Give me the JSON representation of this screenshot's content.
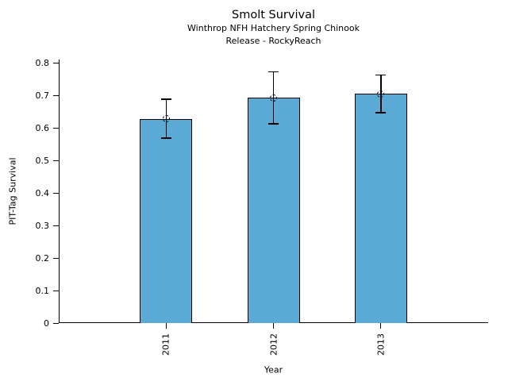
{
  "chart_data": {
    "type": "bar",
    "title": "Smolt Survival",
    "subtitle1": "Winthrop NFH Hatchery Spring Chinook",
    "subtitle2": "Release - RockyReach",
    "xlabel": "Year",
    "ylabel": "PIT-Tag Survival",
    "categories": [
      "2011",
      "2012",
      "2013"
    ],
    "values": [
      0.628,
      0.692,
      0.705
    ],
    "error_low": [
      0.568,
      0.612,
      0.646
    ],
    "error_high": [
      0.688,
      0.772,
      0.762
    ],
    "yticks": [
      0,
      0.1,
      0.2,
      0.3,
      0.4,
      0.5,
      0.6,
      0.7,
      0.8
    ],
    "ytick_labels": [
      "0",
      "0.1",
      "0.2",
      "0.3",
      "0.4",
      "0.5",
      "0.6",
      "0.7",
      "0.8"
    ],
    "ylim": [
      0,
      0.81
    ],
    "grid": false,
    "legend": "none",
    "marker": "open-circle",
    "bar_color": "#5AAAD5",
    "bar_edge_color": "#000000",
    "error_color": "#000000",
    "text_color": "#000000"
  }
}
